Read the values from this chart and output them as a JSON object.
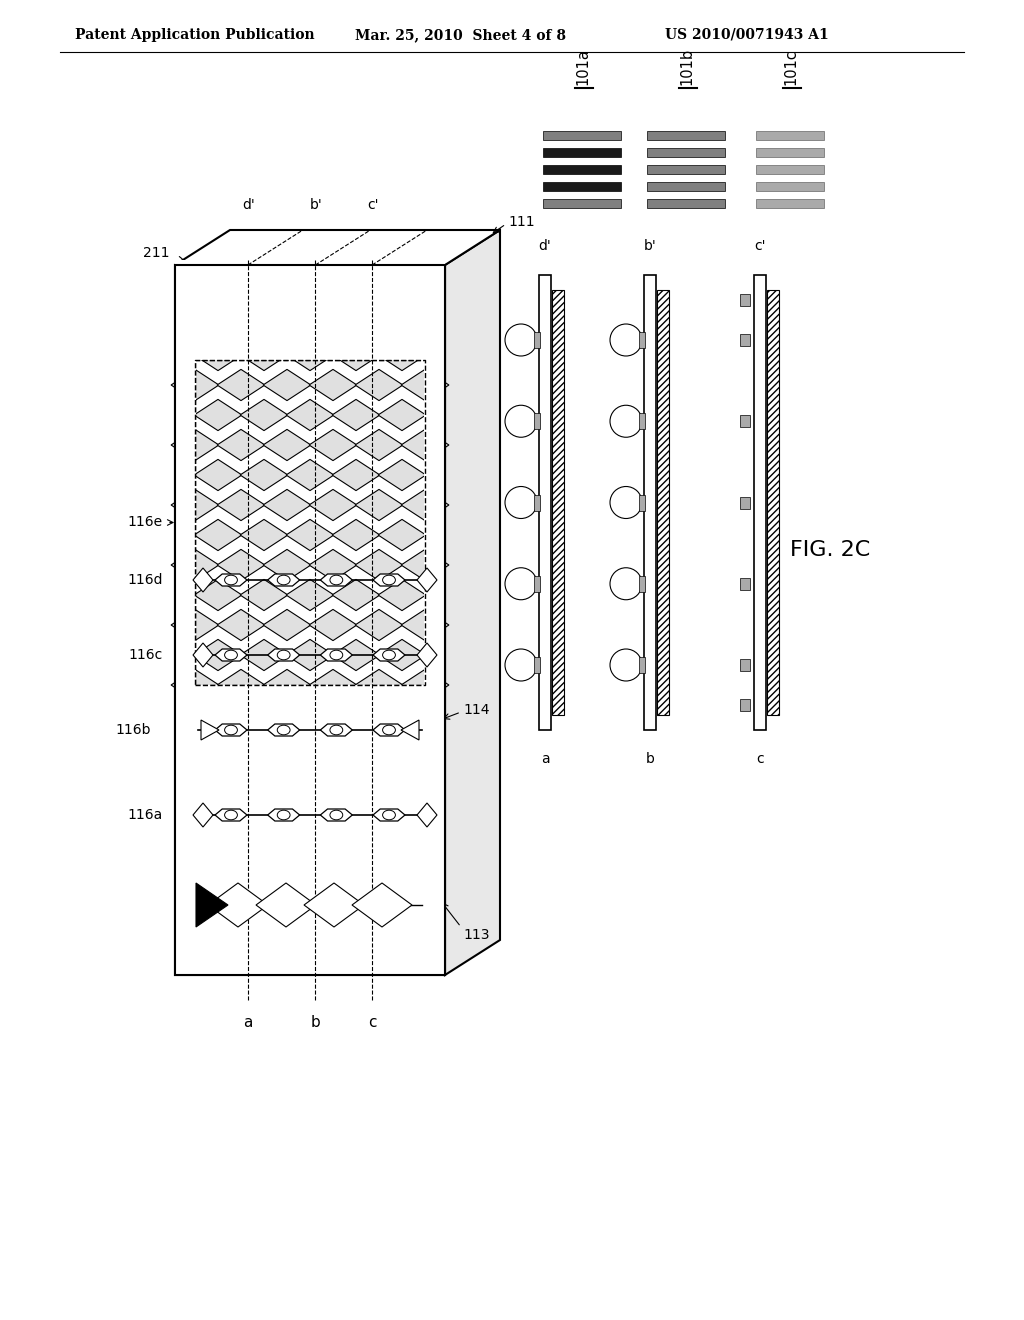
{
  "header_left": "Patent Application Publication",
  "header_mid": "Mar. 25, 2010  Sheet 4 of 8",
  "header_right": "US 2010/0071943 A1",
  "fig_label": "FIG. 2C",
  "bg_color": "#ffffff"
}
